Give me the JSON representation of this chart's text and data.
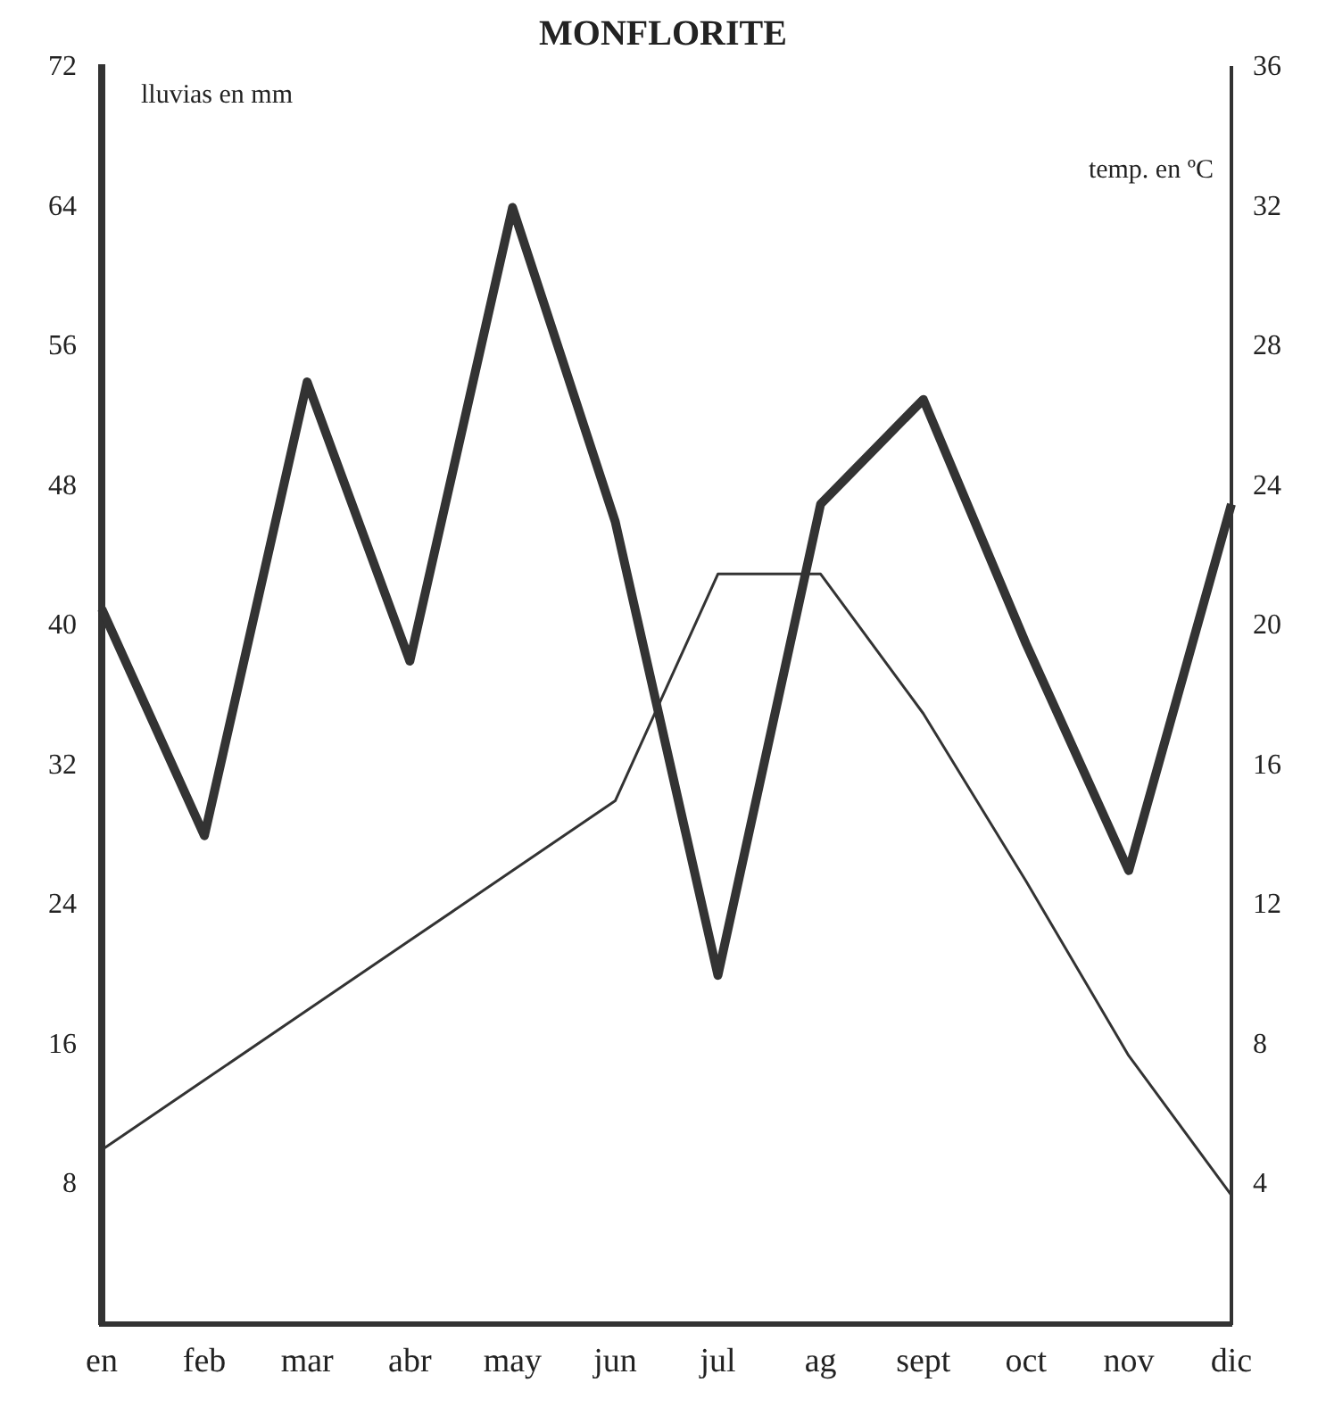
{
  "chart_data": {
    "type": "line",
    "title": "MONFLORITE",
    "ylabel": "lluvias en mm",
    "y2label": "temp. en ºC",
    "categories": [
      "en",
      "feb",
      "mar",
      "abr",
      "may",
      "jun",
      "jul",
      "ag",
      "sept",
      "oct",
      "nov",
      "dic"
    ],
    "series": [
      {
        "color": "#333333",
        "values": [
          41,
          28,
          54,
          38,
          64,
          46,
          20,
          47,
          53,
          39,
          26,
          47
        ]
      },
      {
        "color": "#333333",
        "axis": "y2",
        "values": [
          5,
          7,
          9,
          11,
          13,
          15,
          21.5,
          21.5,
          17.5,
          12.7,
          7.7,
          3.7
        ]
      }
    ],
    "ylim": [
      0,
      72
    ],
    "yticks": [
      8,
      16,
      24,
      32,
      40,
      48,
      56,
      64,
      72
    ],
    "y2lim": [
      0,
      36
    ],
    "y2ticks": [
      4,
      8,
      12,
      16,
      20,
      24,
      28,
      32,
      36
    ],
    "grid": false,
    "legend": false,
    "marker": "none",
    "line_style": "solid"
  }
}
